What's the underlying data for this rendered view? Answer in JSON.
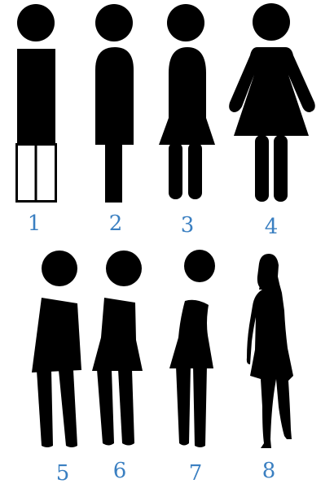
{
  "figures": [
    {
      "label": "1",
      "icon": "boxy-rectangle-figure-icon"
    },
    {
      "label": "2",
      "icon": "rounded-block-figure-icon"
    },
    {
      "label": "3",
      "icon": "short-skirt-figure-icon"
    },
    {
      "label": "4",
      "icon": "dress-figure-icon"
    },
    {
      "label": "5",
      "icon": "leaning-figure-icon"
    },
    {
      "label": "6",
      "icon": "leaning-skirt-figure-icon"
    },
    {
      "label": "7",
      "icon": "slim-leaning-figure-icon"
    },
    {
      "label": "8",
      "icon": "realistic-silhouette-figure-icon"
    }
  ],
  "colors": {
    "figure": "#000000",
    "label": "#3a7fc1",
    "background": "#ffffff"
  }
}
